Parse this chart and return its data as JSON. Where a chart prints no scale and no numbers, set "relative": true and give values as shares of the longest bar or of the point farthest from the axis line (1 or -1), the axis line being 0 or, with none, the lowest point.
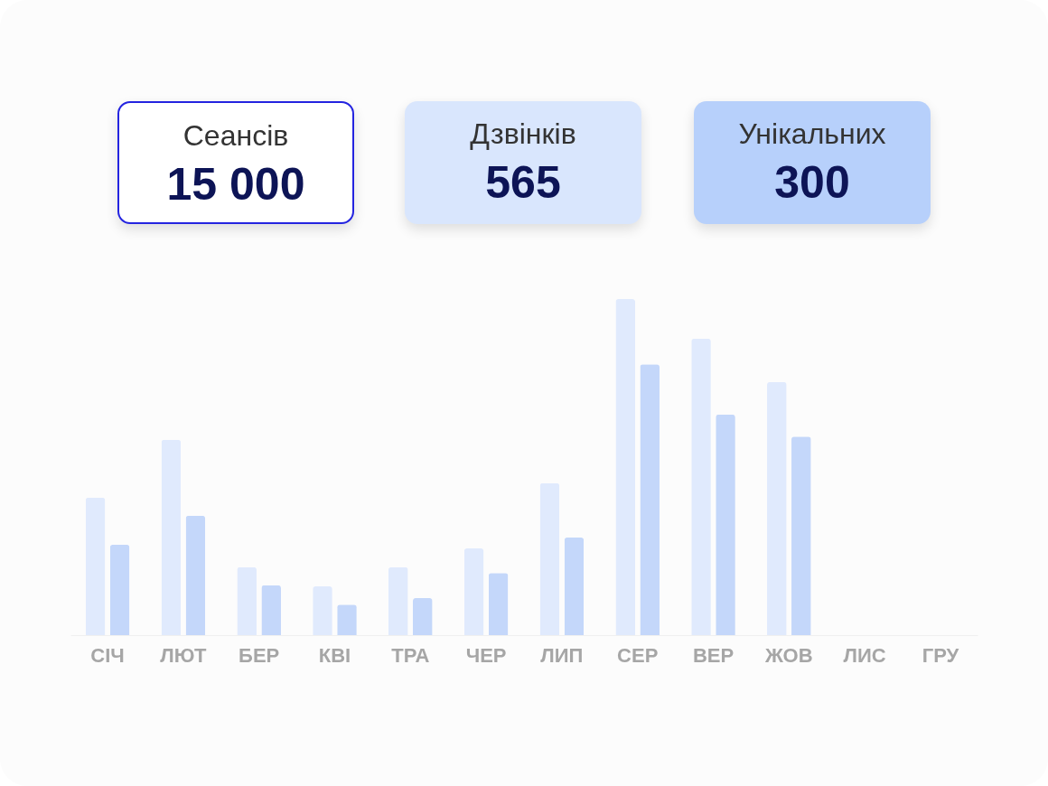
{
  "chart_data": [
    {
      "type": "other",
      "annotations": [
        "Сеансів",
        "15 000",
        "Дзвінків",
        "565",
        "Унікальних",
        "300"
      ]
    },
    {
      "type": "bar",
      "relative": true,
      "categories": [
        "СІЧ",
        "ЛЮТ",
        "БЕР",
        "КВІ",
        "ТРА",
        "ЧЕР",
        "ЛИП",
        "СЕР",
        "ВЕР",
        "ЖОВ",
        "ЛИС",
        "ГРУ"
      ],
      "series": [
        {
          "color": "#e0eafd",
          "values": [
            0.409,
            0.581,
            0.202,
            0.145,
            0.202,
            0.258,
            0.452,
            1,
            0.882,
            0.753,
            null,
            null
          ]
        },
        {
          "color": "#c4d7fa",
          "values": [
            0.269,
            0.355,
            0.148,
            0.091,
            0.11,
            0.185,
            0.29,
            0.806,
            0.656,
            0.591,
            null,
            null
          ]
        }
      ],
      "grid": false,
      "legend": false
    }
  ]
}
